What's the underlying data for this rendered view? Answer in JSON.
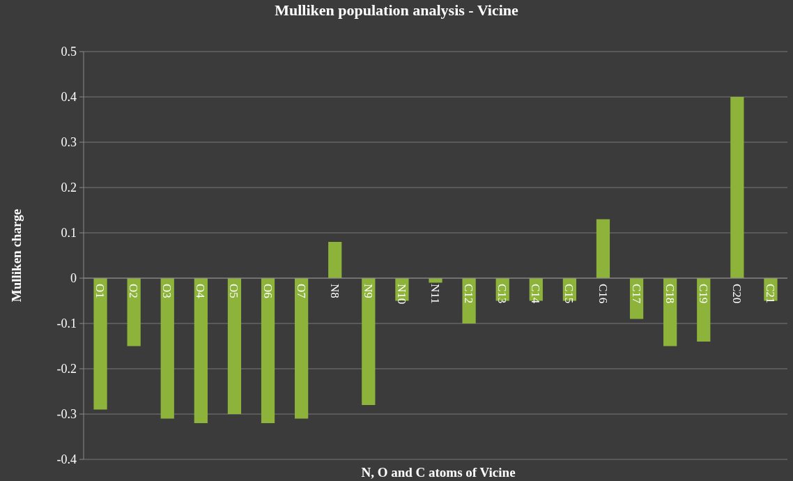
{
  "chart_data": {
    "type": "bar",
    "title": "Mulliken population analysis - Vicine",
    "xlabel": "N, O and C atoms of Vicine",
    "ylabel": "Mulliken charge",
    "categories": [
      "O1",
      "O2",
      "O3",
      "O4",
      "O5",
      "O6",
      "O7",
      "N8",
      "N9",
      "N10",
      "N11",
      "C12",
      "C13",
      "C14",
      "C15",
      "C16",
      "C17",
      "C18",
      "C19",
      "C20",
      "C21"
    ],
    "values": [
      -0.29,
      -0.15,
      -0.31,
      -0.32,
      -0.3,
      -0.32,
      -0.31,
      0.08,
      -0.28,
      -0.05,
      -0.01,
      -0.1,
      -0.05,
      -0.05,
      -0.05,
      0.13,
      -0.09,
      -0.15,
      -0.14,
      0.4,
      -0.05
    ],
    "color": "#8db33a",
    "ylim": [
      -0.4,
      0.5
    ],
    "yticks": [
      -0.4,
      -0.3,
      -0.2,
      -0.1,
      0,
      0.1,
      0.2,
      0.3,
      0.4,
      0.5
    ],
    "grid": "y"
  }
}
